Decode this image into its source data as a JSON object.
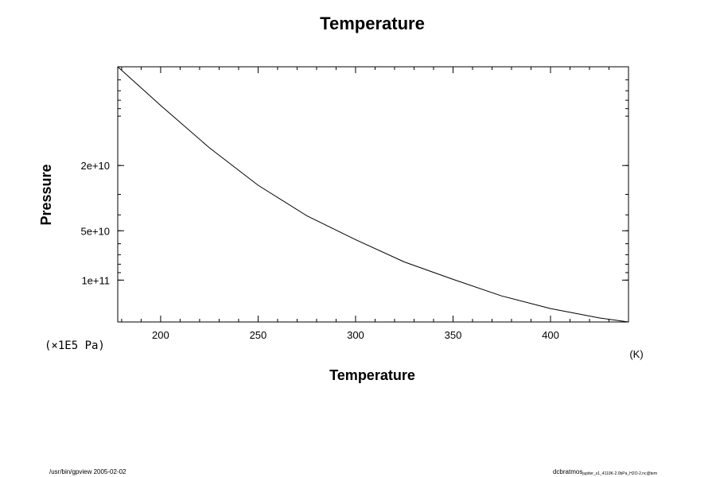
{
  "chart_data": {
    "type": "line",
    "title": "Temperature",
    "xlabel": "Temperature",
    "ylabel": "Pressure",
    "x_unit": "(K)",
    "y_unit": "(×1E5 Pa)",
    "xlim": [
      178,
      440
    ],
    "ylim": [
      5000000000.0,
      180000000000.0
    ],
    "y_log": true,
    "y_inverted": true,
    "x_ticks": [
      200,
      250,
      300,
      350,
      400
    ],
    "x_tick_labels": [
      "200",
      "250",
      "300",
      "350",
      "400"
    ],
    "y_ticks": [
      20000000000.0,
      50000000000.0,
      100000000000.0
    ],
    "y_tick_labels": [
      "2e+10",
      "5e+10",
      "1e+11"
    ],
    "grid": false,
    "series": [
      {
        "x": [
          178,
          200,
          225,
          250,
          275,
          300,
          325,
          350,
          375,
          400,
          425,
          440
        ],
        "y": [
          5000000000.0,
          8600000000.0,
          15600000000.0,
          26400000000.0,
          40500000000.0,
          56600000000.0,
          77500000000.0,
          99000000000.0,
          125000000000.0,
          149000000000.0,
          170000000000.0,
          180000000000.0
        ]
      }
    ]
  },
  "footer": {
    "left": "/usr/bin/gpview 2005-02-02",
    "right_main": "dcbratmos",
    "right_small": "jupiter_s1_4110K-2.0bPa_H2O-2.nc@tem"
  }
}
